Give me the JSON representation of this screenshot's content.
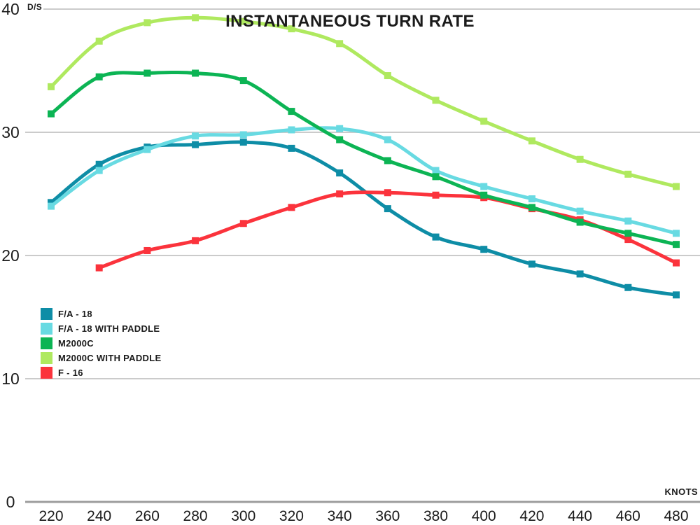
{
  "chart_data": {
    "type": "line",
    "title": "INSTANTANEOUS TURN RATE",
    "ylabel": "D/S",
    "xlabel": "KNOTS",
    "ylim": [
      0,
      40
    ],
    "y_ticks": [
      0,
      10,
      20,
      30,
      40
    ],
    "x_ticks": [
      220,
      240,
      260,
      280,
      300,
      320,
      340,
      360,
      380,
      400,
      420,
      440,
      460,
      480
    ],
    "grid": "horizontal-only",
    "legend_position": "middle-left",
    "marker": "square",
    "series": [
      {
        "name": "F/A - 18",
        "color": "#0e8da6",
        "x": [
          220,
          240,
          260,
          280,
          300,
          320,
          340,
          360,
          380,
          400,
          420,
          440,
          460,
          480
        ],
        "values": [
          24.3,
          27.4,
          28.8,
          29.0,
          29.2,
          28.7,
          26.7,
          23.8,
          21.5,
          20.5,
          19.3,
          18.5,
          17.4,
          16.8
        ]
      },
      {
        "name": "F/A - 18 WITH PADDLE",
        "color": "#68dae2",
        "x": [
          220,
          240,
          260,
          280,
          300,
          320,
          340,
          360,
          380,
          400,
          420,
          440,
          460,
          480
        ],
        "values": [
          24.0,
          26.9,
          28.6,
          29.7,
          29.8,
          30.2,
          30.3,
          29.4,
          26.9,
          25.6,
          24.6,
          23.6,
          22.8,
          21.8
        ]
      },
      {
        "name": "M2000C",
        "color": "#0cb454",
        "x": [
          220,
          240,
          260,
          280,
          300,
          320,
          340,
          360,
          380,
          400,
          420,
          440,
          460,
          480
        ],
        "values": [
          31.5,
          34.5,
          34.8,
          34.8,
          34.2,
          31.7,
          29.4,
          27.7,
          26.4,
          24.9,
          23.9,
          22.7,
          21.8,
          20.9
        ]
      },
      {
        "name": "M2000C WITH PADDLE",
        "color": "#afe95f",
        "x": [
          220,
          240,
          260,
          280,
          300,
          320,
          340,
          360,
          380,
          400,
          420,
          440,
          460,
          480
        ],
        "values": [
          33.7,
          37.4,
          38.9,
          39.3,
          39.0,
          38.4,
          37.2,
          34.6,
          32.6,
          30.9,
          29.3,
          27.8,
          26.6,
          25.6
        ]
      },
      {
        "name": "F - 16",
        "color": "#fb333c",
        "x": [
          240,
          260,
          280,
          300,
          320,
          340,
          360,
          380,
          400,
          420,
          440,
          460,
          480
        ],
        "values": [
          19.0,
          20.4,
          21.2,
          22.6,
          23.9,
          25.0,
          25.1,
          24.9,
          24.7,
          23.8,
          22.9,
          21.3,
          19.4
        ]
      }
    ],
    "colors": {
      "gridline": "#cbcbcb",
      "axis_line": "#9c9c9c",
      "text": "#1b1b1b"
    }
  }
}
